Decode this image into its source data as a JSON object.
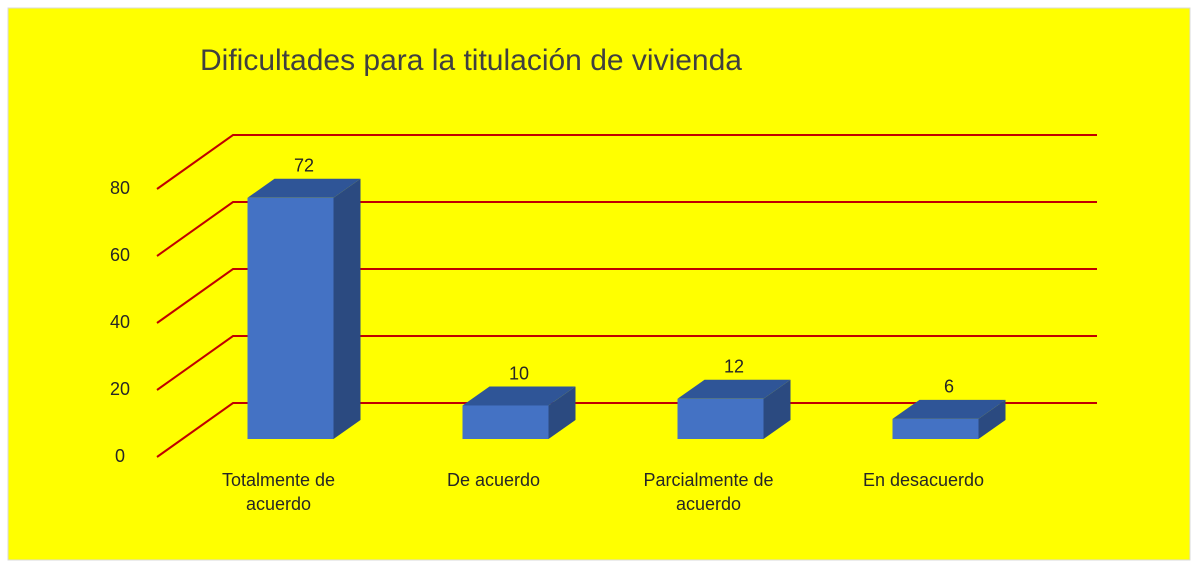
{
  "chart_data": {
    "type": "bar3d",
    "title": "Dificultades para la titulación de vivienda",
    "categories": [
      "Totalmente de acuerdo",
      "De acuerdo",
      "Parcialmente de acuerdo",
      "En desacuerdo"
    ],
    "values": [
      72,
      10,
      12,
      6
    ],
    "color": "#4472c4",
    "ylim": [
      0,
      80
    ],
    "yticks": [
      0,
      20,
      40,
      60,
      80
    ],
    "grid": true,
    "grid_color": "#c00000",
    "background": "#ffff00"
  }
}
